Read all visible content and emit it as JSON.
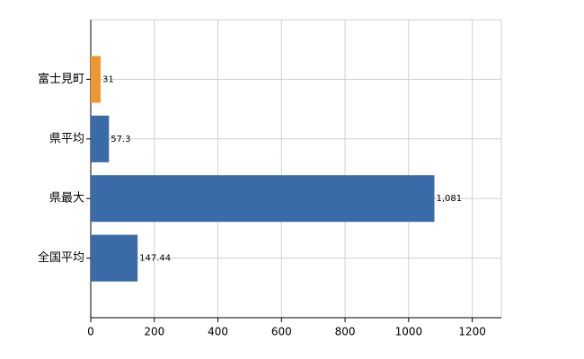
{
  "chart_data": {
    "type": "bar",
    "orientation": "horizontal",
    "categories": [
      "富士見町",
      "県平均",
      "県最大",
      "全国平均"
    ],
    "values": [
      31,
      57.3,
      1081,
      147.44
    ],
    "value_labels": [
      "31",
      "57.3",
      "1,081",
      "147.44"
    ],
    "colors": [
      "#f0962e",
      "#3a6aa8",
      "#3a6aa8",
      "#3a6aa8"
    ],
    "xlim": [
      0,
      1300
    ],
    "xticks": [
      0,
      200,
      400,
      600,
      800,
      1000,
      1200
    ],
    "grid": true
  }
}
